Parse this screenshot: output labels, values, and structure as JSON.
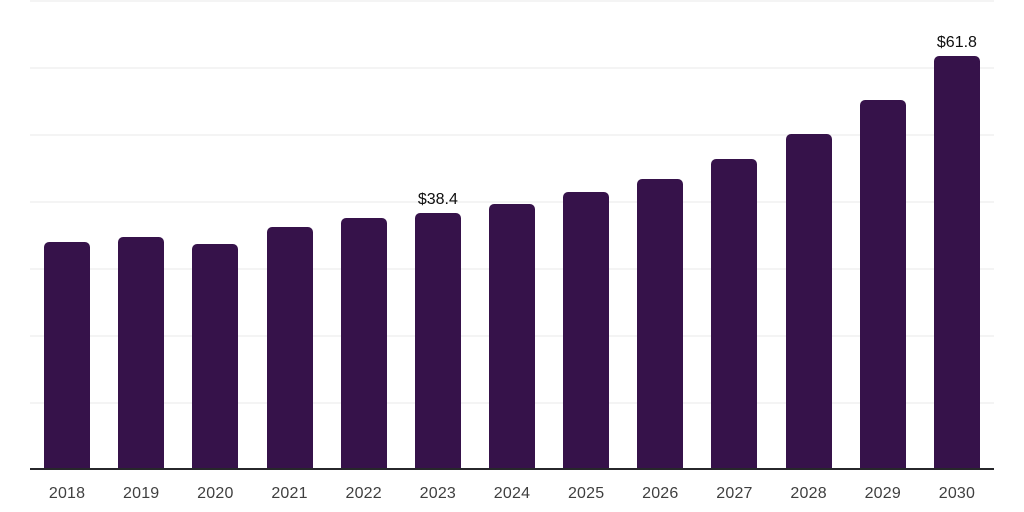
{
  "chart_data": {
    "type": "bar",
    "title": "",
    "xlabel": "",
    "ylabel": "",
    "categories": [
      "2018",
      "2019",
      "2020",
      "2021",
      "2022",
      "2023",
      "2024",
      "2025",
      "2026",
      "2027",
      "2028",
      "2029",
      "2030"
    ],
    "values": [
      34.0,
      34.8,
      33.7,
      36.3,
      37.6,
      38.4,
      39.7,
      41.5,
      43.5,
      46.5,
      50.2,
      55.2,
      61.8
    ],
    "data_labels": [
      {
        "category": "2023",
        "text": "$38.4"
      },
      {
        "category": "2030",
        "text": "$61.8"
      }
    ],
    "ylim": [
      0,
      70
    ],
    "gridline_step": 10,
    "grid": "horizontal",
    "legend_position": "none",
    "bar_color": "#36124a",
    "axis_color": "#27272b",
    "gridline_color": "#f4f4f4",
    "tick_label_color": "#3f3f3f",
    "data_label_color": "#0e0e0e",
    "background": "#ffffff"
  }
}
